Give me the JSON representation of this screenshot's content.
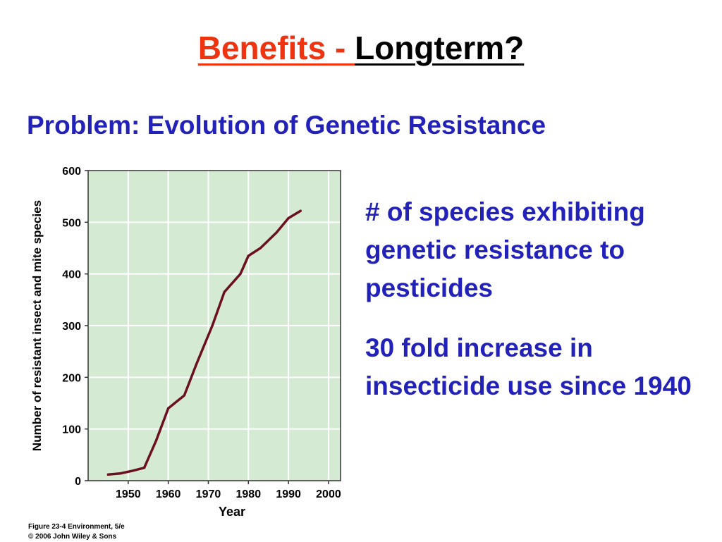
{
  "slide": {
    "title_part1": "Benefits - ",
    "title_part2": "Longterm?",
    "subtitle": "Problem: Evolution of Genetic Resistance",
    "paragraph1": "# of species exhibiting genetic resistance to pesticides",
    "paragraph2": "30 fold increase in insecticide use since 1940",
    "figure_credit_line1": "Figure 23-4  Environment, 5/e",
    "figure_credit_line2": "© 2006 John Wiley & Sons"
  },
  "colors": {
    "title_red": "#ee3311",
    "text_blue": "#2222bb",
    "plot_background": "#d4ead3",
    "line_color": "#6b1020"
  },
  "chart_data": {
    "type": "line",
    "xlabel": "Year",
    "ylabel": "Number of resistant insect and mite species",
    "xlim": [
      1940,
      2003
    ],
    "ylim": [
      0,
      600
    ],
    "x_ticks": [
      1950,
      1960,
      1970,
      1980,
      1990,
      2000
    ],
    "y_ticks": [
      0,
      100,
      200,
      300,
      400,
      500,
      600
    ],
    "grid": true,
    "series": [
      {
        "x": [
          1945,
          1948,
          1951,
          1954,
          1957,
          1960,
          1964,
          1967,
          1971,
          1974,
          1978,
          1980,
          1983,
          1987,
          1990,
          1993
        ],
        "y": [
          12,
          14,
          19,
          25,
          78,
          140,
          165,
          225,
          300,
          365,
          400,
          435,
          450,
          480,
          508,
          522
        ]
      }
    ]
  }
}
